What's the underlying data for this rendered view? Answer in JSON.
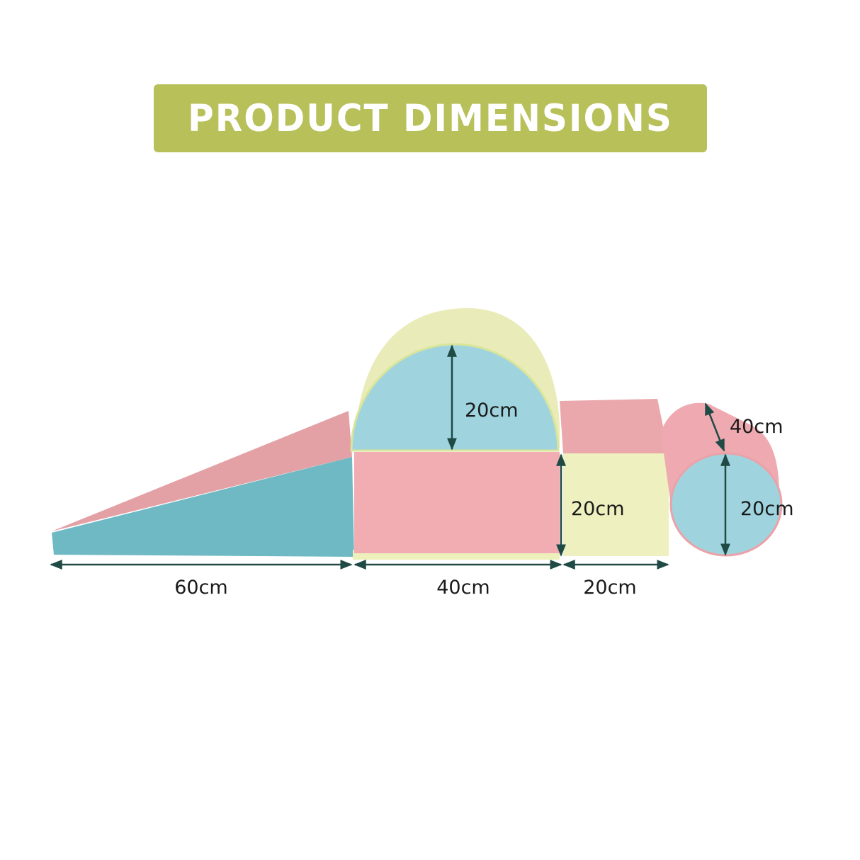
{
  "banner": {
    "title": "PRODUCT DIMENSIONS",
    "color": "#b8c05a"
  },
  "colors": {
    "pink": "#f0aeb2",
    "pink_top": "#e9a3a7",
    "blue": "#9fd4df",
    "teal_side": "#6fb9c4",
    "yellow": "#eef0bc",
    "arrow": "#1f4a45"
  },
  "dimensions": {
    "wedge_length": "60cm",
    "box_length": "40cm",
    "cube_length": "20cm",
    "arch_height": "20cm",
    "cube_height": "20cm",
    "cylinder_length": "40cm",
    "cylinder_diameter": "20cm"
  }
}
